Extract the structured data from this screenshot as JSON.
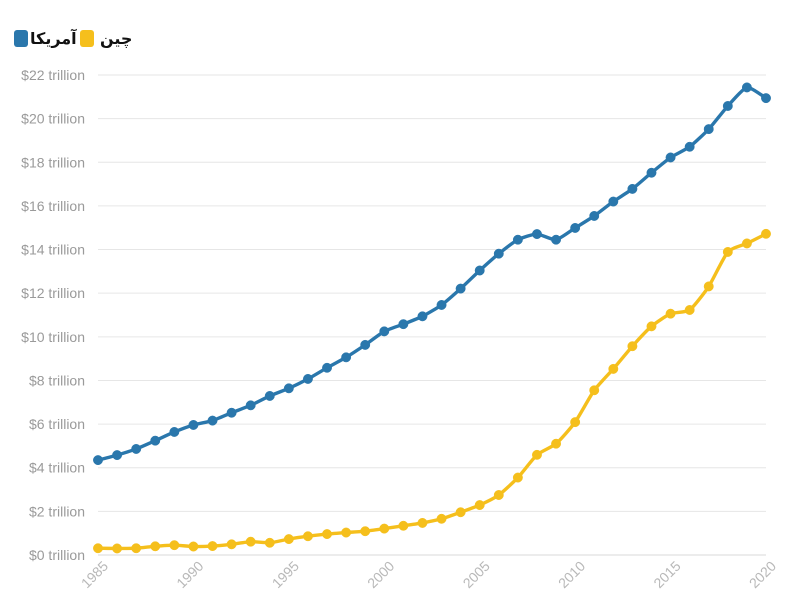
{
  "chart_data": {
    "type": "line",
    "title": "",
    "xlabel": "",
    "ylabel": "",
    "x": [
      1985,
      1986,
      1987,
      1988,
      1989,
      1990,
      1991,
      1992,
      1993,
      1994,
      1995,
      1996,
      1997,
      1998,
      1999,
      2000,
      2001,
      2002,
      2003,
      2004,
      2005,
      2006,
      2007,
      2008,
      2009,
      2010,
      2011,
      2012,
      2013,
      2014,
      2015,
      2016,
      2017,
      2018,
      2019,
      2020
    ],
    "xlim": [
      1985,
      2020
    ],
    "ylim": [
      0,
      22
    ],
    "grid": true,
    "legend_position": "top-left",
    "y_ticks": [
      {
        "value": 0,
        "label": "$0 trillion"
      },
      {
        "value": 2,
        "label": "$2 trillion"
      },
      {
        "value": 4,
        "label": "$4 trillion"
      },
      {
        "value": 6,
        "label": "$6 trillion"
      },
      {
        "value": 8,
        "label": "$8 trillion"
      },
      {
        "value": 10,
        "label": "$10 trillion"
      },
      {
        "value": 12,
        "label": "$12 trillion"
      },
      {
        "value": 14,
        "label": "$14 trillion"
      },
      {
        "value": 16,
        "label": "$16 trillion"
      },
      {
        "value": 18,
        "label": "$18 trillion"
      },
      {
        "value": 20,
        "label": "$20 trillion"
      },
      {
        "value": 22,
        "label": "$22 trillion"
      }
    ],
    "x_ticks": [
      {
        "value": 1985,
        "label": "1985"
      },
      {
        "value": 1990,
        "label": "1990"
      },
      {
        "value": 1995,
        "label": "1995"
      },
      {
        "value": 2000,
        "label": "2000"
      },
      {
        "value": 2005,
        "label": "2005"
      },
      {
        "value": 2010,
        "label": "2010"
      },
      {
        "value": 2015,
        "label": "2015"
      },
      {
        "value": 2020,
        "label": "2020"
      }
    ],
    "series": [
      {
        "name": "آمریکا",
        "color": "#2a77ac",
        "values": [
          4.35,
          4.58,
          4.86,
          5.24,
          5.64,
          5.96,
          6.16,
          6.52,
          6.86,
          7.29,
          7.64,
          8.07,
          8.58,
          9.06,
          9.63,
          10.25,
          10.58,
          10.94,
          11.46,
          12.21,
          13.04,
          13.81,
          14.45,
          14.71,
          14.45,
          14.99,
          15.54,
          16.2,
          16.78,
          17.52,
          18.22,
          18.71,
          19.52,
          20.58,
          21.43,
          20.94
        ]
      },
      {
        "name": "چین",
        "color": "#f5bf1c",
        "values": [
          0.31,
          0.3,
          0.31,
          0.4,
          0.45,
          0.39,
          0.41,
          0.49,
          0.61,
          0.56,
          0.73,
          0.86,
          0.96,
          1.03,
          1.09,
          1.21,
          1.34,
          1.47,
          1.66,
          1.96,
          2.29,
          2.75,
          3.55,
          4.59,
          5.1,
          6.09,
          7.55,
          8.53,
          9.57,
          10.48,
          11.06,
          11.23,
          12.31,
          13.89,
          14.28,
          14.72
        ]
      }
    ]
  }
}
